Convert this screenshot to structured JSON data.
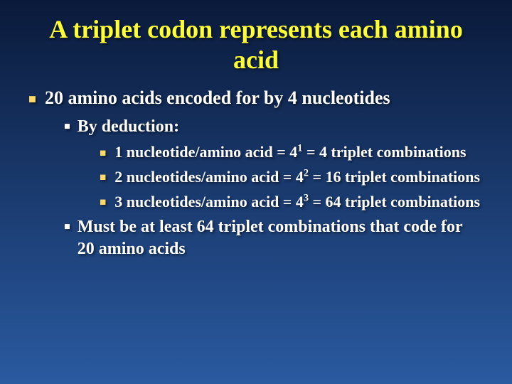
{
  "slide": {
    "title": "A triplet codon represents each amino acid",
    "l1_item1": "20 amino acids encoded for by 4 nucleotides",
    "l2_item1": "By deduction:",
    "l3_item1_pre": "1 nucleotide/amino acid = 4",
    "l3_item1_sup": "1",
    "l3_item1_post": " = 4 triplet combinations",
    "l3_item2_pre": "2 nucleotides/amino acid = 4",
    "l3_item2_sup": "2",
    "l3_item2_post": " = 16 triplet combinations",
    "l3_item3_pre": "3 nucleotides/amino acid = 4",
    "l3_item3_sup": "3",
    "l3_item3_post": " = 64 triplet combinations",
    "l2_item2": "Must be at least 64 triplet combinations that code for 20 amino acids"
  },
  "style": {
    "title_color": "#ffff33",
    "text_color": "#ffffff",
    "bullet_yellow": "#ffd966",
    "bg_gradient_top": "#0a1a3a",
    "bg_gradient_mid": "#1a3a6e",
    "bg_gradient_bottom": "#2a5aa0",
    "title_fontsize": 36,
    "l1_fontsize": 26,
    "l2_fontsize": 24,
    "l3_fontsize": 22,
    "font_family": "Times New Roman"
  }
}
